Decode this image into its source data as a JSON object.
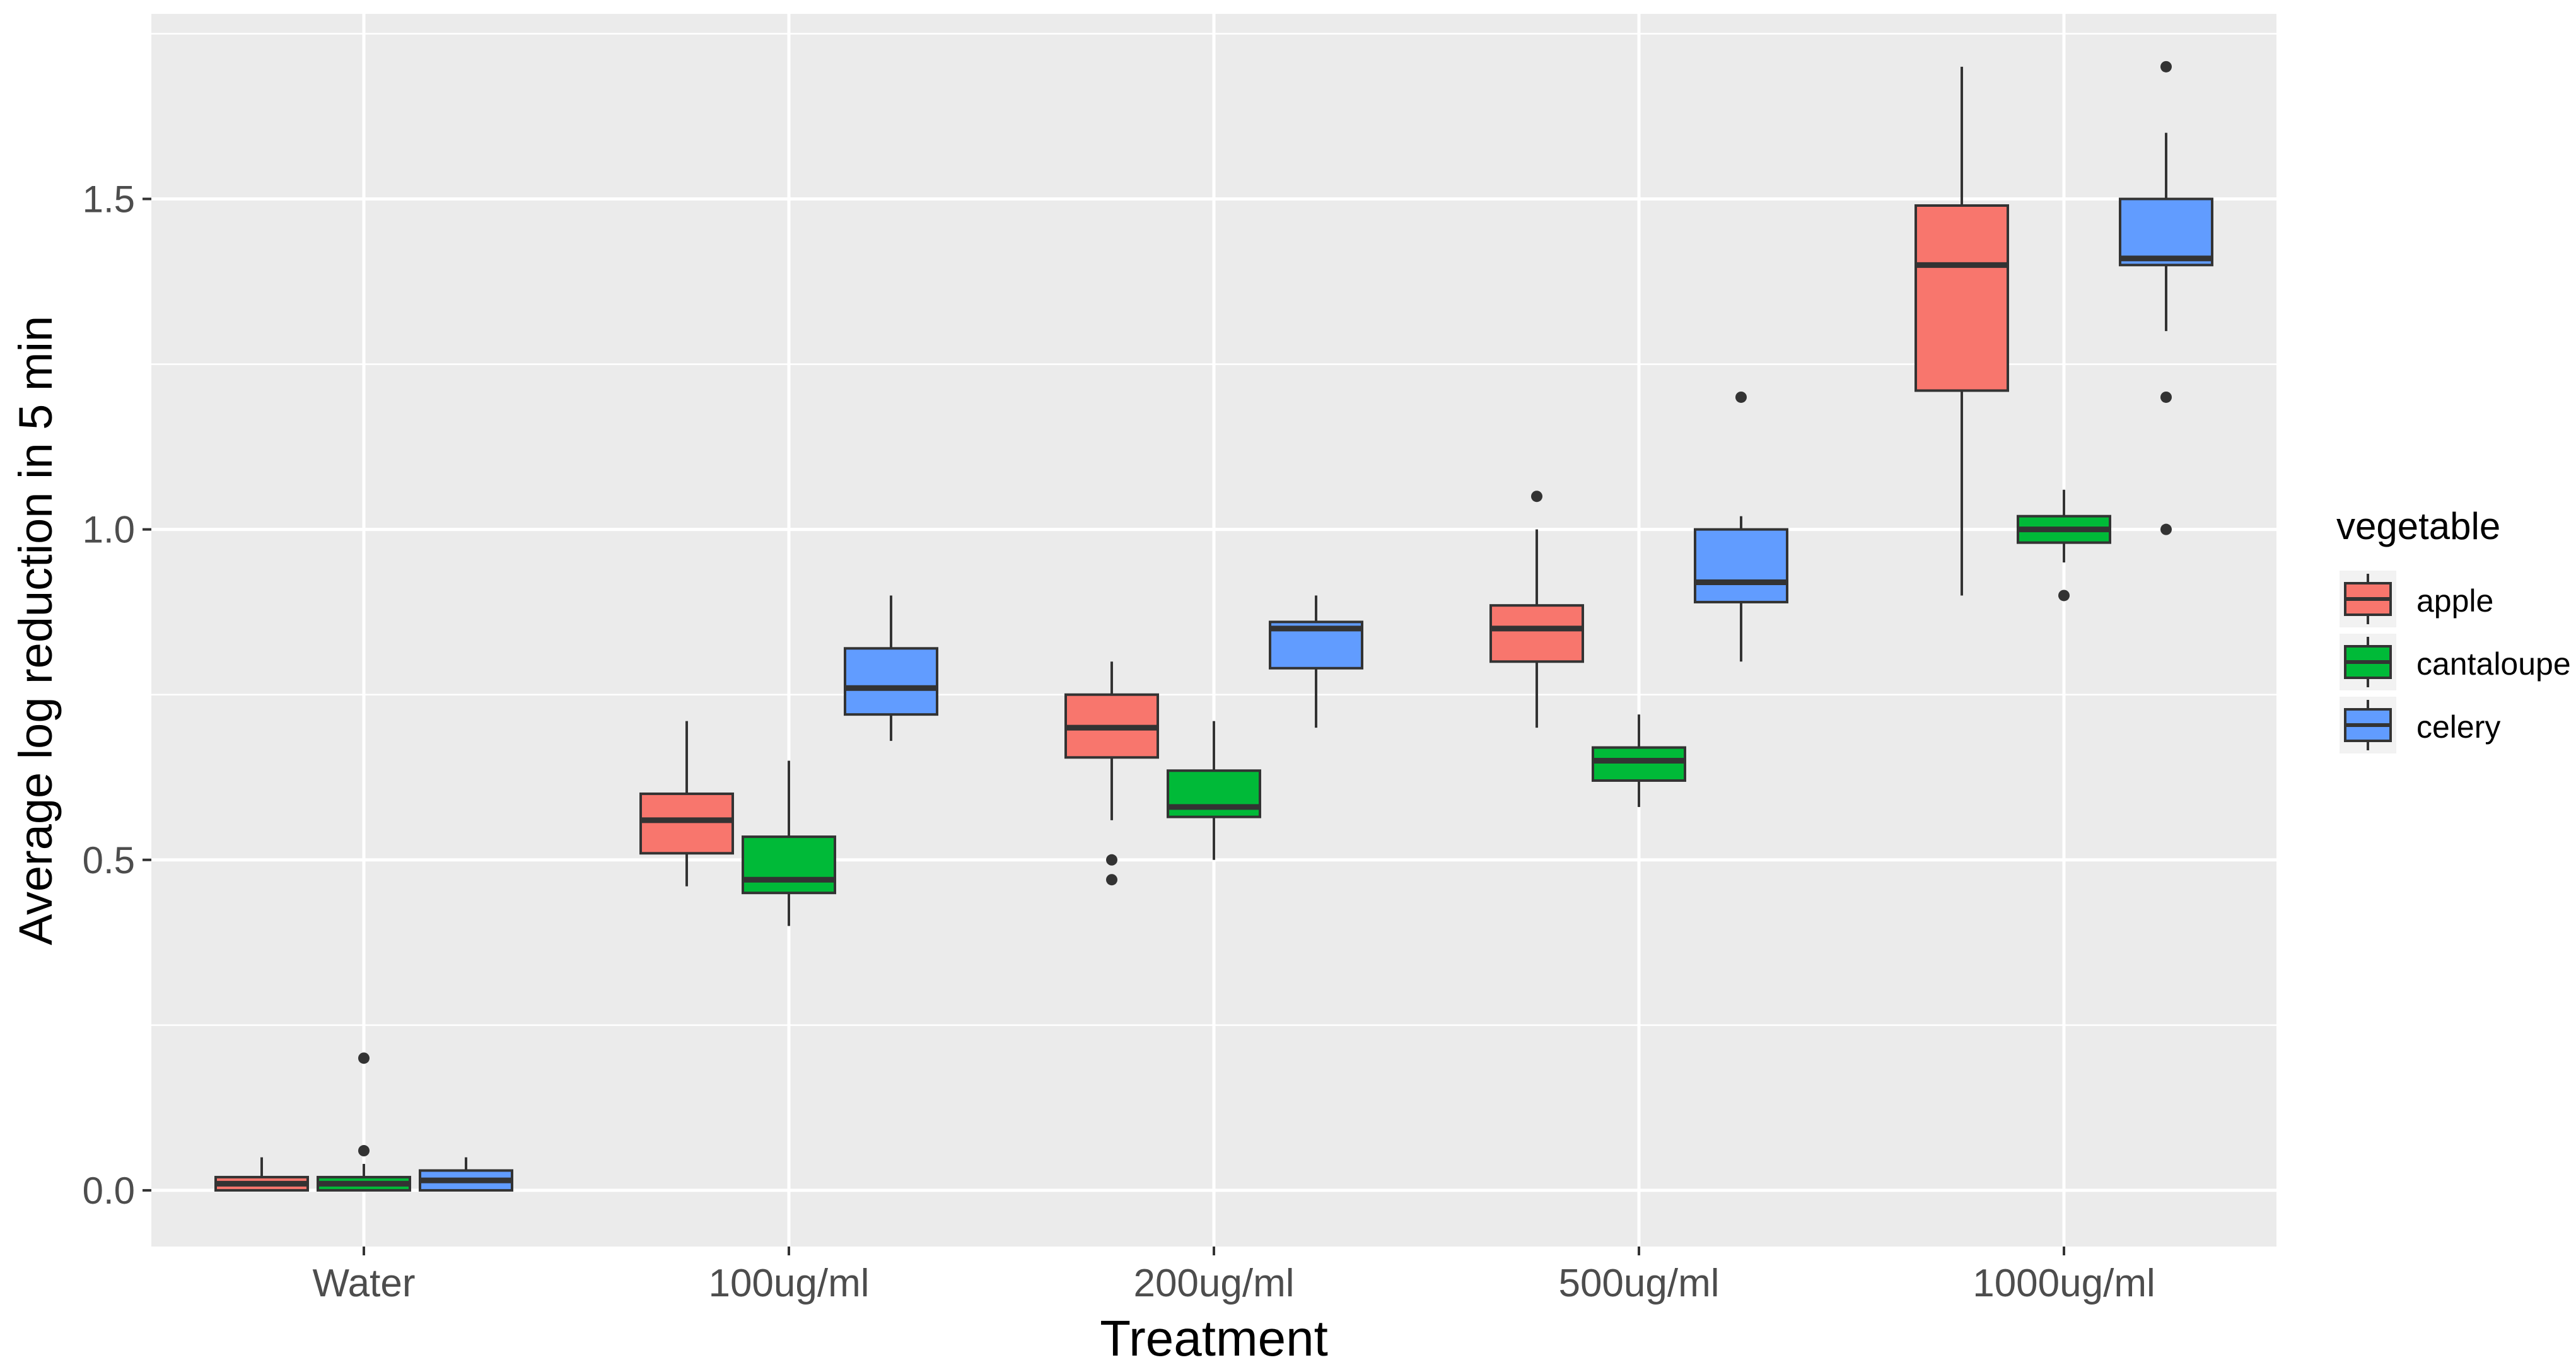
{
  "chart_data": {
    "type": "boxplot",
    "xlabel": "Treatment",
    "ylabel": "Average log reduction in 5 min",
    "ylim": [
      -0.085,
      1.78
    ],
    "y_ticks": [
      0.0,
      0.5,
      1.0,
      1.5
    ],
    "y_tick_labels": [
      "0.0",
      "0.5",
      "1.0",
      "1.5"
    ],
    "categories": [
      "Water",
      "100ug/ml",
      "200ug/ml",
      "500ug/ml",
      "1000ug/ml"
    ],
    "legend_title": "vegetable",
    "legend_position": "right",
    "series": [
      {
        "name": "apple",
        "color": "#F8766D",
        "boxes": [
          {
            "min": 0.0,
            "q1": 0.0,
            "median": 0.01,
            "q3": 0.02,
            "max": 0.05,
            "outliers": []
          },
          {
            "min": 0.46,
            "q1": 0.51,
            "median": 0.56,
            "q3": 0.6,
            "max": 0.71,
            "outliers": []
          },
          {
            "min": 0.56,
            "q1": 0.655,
            "median": 0.7,
            "q3": 0.75,
            "max": 0.8,
            "outliers": [
              0.5,
              0.47
            ]
          },
          {
            "min": 0.7,
            "q1": 0.8,
            "median": 0.85,
            "q3": 0.885,
            "max": 1.0,
            "outliers": [
              1.05
            ]
          },
          {
            "min": 0.9,
            "q1": 1.21,
            "median": 1.4,
            "q3": 1.49,
            "max": 1.7,
            "outliers": []
          }
        ]
      },
      {
        "name": "cantaloupe",
        "color": "#00BA38",
        "boxes": [
          {
            "min": 0.0,
            "q1": 0.0,
            "median": 0.01,
            "q3": 0.02,
            "max": 0.04,
            "outliers": [
              0.2,
              0.06
            ]
          },
          {
            "min": 0.4,
            "q1": 0.45,
            "median": 0.47,
            "q3": 0.535,
            "max": 0.65,
            "outliers": []
          },
          {
            "min": 0.5,
            "q1": 0.565,
            "median": 0.58,
            "q3": 0.635,
            "max": 0.71,
            "outliers": []
          },
          {
            "min": 0.58,
            "q1": 0.62,
            "median": 0.65,
            "q3": 0.67,
            "max": 0.72,
            "outliers": []
          },
          {
            "min": 0.95,
            "q1": 0.98,
            "median": 1.0,
            "q3": 1.02,
            "max": 1.06,
            "outliers": [
              0.9
            ]
          }
        ]
      },
      {
        "name": "celery",
        "color": "#619CFF",
        "boxes": [
          {
            "min": 0.0,
            "q1": 0.0,
            "median": 0.015,
            "q3": 0.03,
            "max": 0.05,
            "outliers": []
          },
          {
            "min": 0.68,
            "q1": 0.72,
            "median": 0.76,
            "q3": 0.82,
            "max": 0.9,
            "outliers": []
          },
          {
            "min": 0.7,
            "q1": 0.79,
            "median": 0.85,
            "q3": 0.86,
            "max": 0.9,
            "outliers": []
          },
          {
            "min": 0.8,
            "q1": 0.89,
            "median": 0.92,
            "q3": 1.0,
            "max": 1.02,
            "outliers": [
              1.2
            ]
          },
          {
            "min": 1.3,
            "q1": 1.4,
            "median": 1.41,
            "q3": 1.5,
            "max": 1.6,
            "outliers": [
              1.7,
              1.2,
              1.0
            ]
          }
        ]
      }
    ]
  }
}
